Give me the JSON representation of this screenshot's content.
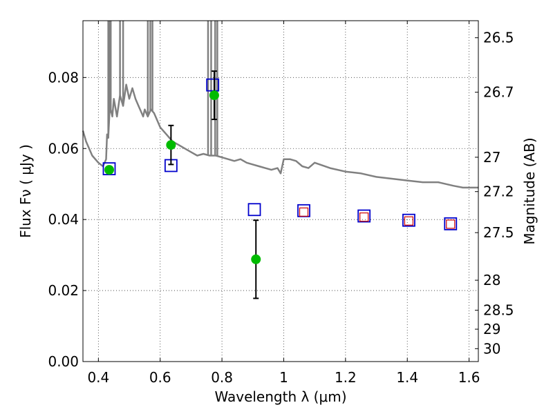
{
  "chart_data": {
    "type": "scatter",
    "xlabel": "Wavelength  λ (μm)",
    "ylabel": "Flux  Fν  ( μJy )",
    "y2label": "Magnitude (AB)",
    "xlim": [
      0.35,
      1.63
    ],
    "ylim": [
      0.0,
      0.096
    ],
    "grid": true,
    "xticks": [
      {
        "value": 0.4,
        "label": "0.4"
      },
      {
        "value": 0.6,
        "label": "0.6"
      },
      {
        "value": 0.8,
        "label": "0.8"
      },
      {
        "value": 1.0,
        "label": "1"
      },
      {
        "value": 1.2,
        "label": "1.2"
      },
      {
        "value": 1.4,
        "label": "1.4"
      },
      {
        "value": 1.6,
        "label": "1.6"
      }
    ],
    "yticks": [
      {
        "value": 0.0,
        "label": "0.00"
      },
      {
        "value": 0.02,
        "label": "0.02"
      },
      {
        "value": 0.04,
        "label": "0.04"
      },
      {
        "value": 0.06,
        "label": "0.06"
      },
      {
        "value": 0.08,
        "label": "0.08"
      }
    ],
    "y2ticks": [
      {
        "mag": 26.5,
        "label": "26.5"
      },
      {
        "mag": 26.7,
        "label": "26.7"
      },
      {
        "mag": 27.0,
        "label": "27"
      },
      {
        "mag": 27.2,
        "label": "27.2"
      },
      {
        "mag": 27.5,
        "label": "27.5"
      },
      {
        "mag": 28.0,
        "label": "28"
      },
      {
        "mag": 28.5,
        "label": "28.5"
      },
      {
        "mag": 29.0,
        "label": "29"
      },
      {
        "mag": 30.0,
        "label": "30"
      }
    ],
    "series": [
      {
        "kind": "line",
        "color": "#808080",
        "x": [
          0.35,
          0.36,
          0.38,
          0.4,
          0.415,
          0.425,
          0.428,
          0.432,
          0.436,
          0.44,
          0.445,
          0.45,
          0.46,
          0.47,
          0.48,
          0.49,
          0.5,
          0.51,
          0.52,
          0.53,
          0.54,
          0.545,
          0.55,
          0.56,
          0.57,
          0.58,
          0.59,
          0.6,
          0.62,
          0.64,
          0.66,
          0.68,
          0.7,
          0.72,
          0.74,
          0.76,
          0.78,
          0.8,
          0.82,
          0.84,
          0.86,
          0.88,
          0.9,
          0.92,
          0.94,
          0.96,
          0.98,
          0.99,
          1.0,
          1.02,
          1.04,
          1.06,
          1.08,
          1.1,
          1.15,
          1.2,
          1.25,
          1.3,
          1.35,
          1.4,
          1.45,
          1.5,
          1.55,
          1.58,
          1.6,
          1.63
        ],
        "y": [
          0.065,
          0.062,
          0.058,
          0.056,
          0.055,
          0.057,
          0.064,
          0.063,
          0.07,
          0.071,
          0.069,
          0.074,
          0.069,
          0.075,
          0.072,
          0.078,
          0.074,
          0.077,
          0.074,
          0.072,
          0.07,
          0.069,
          0.071,
          0.069,
          0.071,
          0.07,
          0.068,
          0.066,
          0.064,
          0.062,
          0.061,
          0.06,
          0.059,
          0.058,
          0.0585,
          0.058,
          0.058,
          0.0575,
          0.057,
          0.0565,
          0.057,
          0.056,
          0.0555,
          0.055,
          0.0545,
          0.054,
          0.0545,
          0.053,
          0.057,
          0.057,
          0.0565,
          0.055,
          0.0545,
          0.056,
          0.0545,
          0.0535,
          0.053,
          0.052,
          0.0515,
          0.051,
          0.0505,
          0.0505,
          0.0495,
          0.049,
          0.049,
          0.049
        ]
      },
      {
        "kind": "spikes",
        "color": "#808080",
        "x": [
          0.432,
          0.436,
          0.44,
          0.47,
          0.48,
          0.56,
          0.568,
          0.575,
          0.755,
          0.765,
          0.778,
          0.785
        ],
        "y": [
          0.096,
          0.096,
          0.096,
          0.096,
          0.096,
          0.096,
          0.096,
          0.096,
          0.096,
          0.096,
          0.096,
          0.096
        ]
      },
      {
        "kind": "open-square",
        "color": "#0000cc",
        "x": [
          0.435,
          0.635,
          0.77,
          0.905,
          1.065,
          1.26,
          1.405,
          1.54
        ],
        "y": [
          0.0543,
          0.0552,
          0.0779,
          0.0428,
          0.0425,
          0.041,
          0.0398,
          0.0388
        ]
      },
      {
        "kind": "open-square",
        "color": "#cc0000",
        "x": [
          1.065,
          1.26,
          1.405,
          1.54
        ],
        "y": [
          0.0421,
          0.0407,
          0.0396,
          0.0387
        ]
      },
      {
        "kind": "filled-circle",
        "color": "#00bb00",
        "x": [
          0.435,
          0.635,
          0.775,
          0.91
        ],
        "y": [
          0.054,
          0.061,
          0.075,
          0.0288
        ],
        "yerr": [
          0.0,
          0.0055,
          0.0068,
          0.011
        ]
      }
    ]
  }
}
